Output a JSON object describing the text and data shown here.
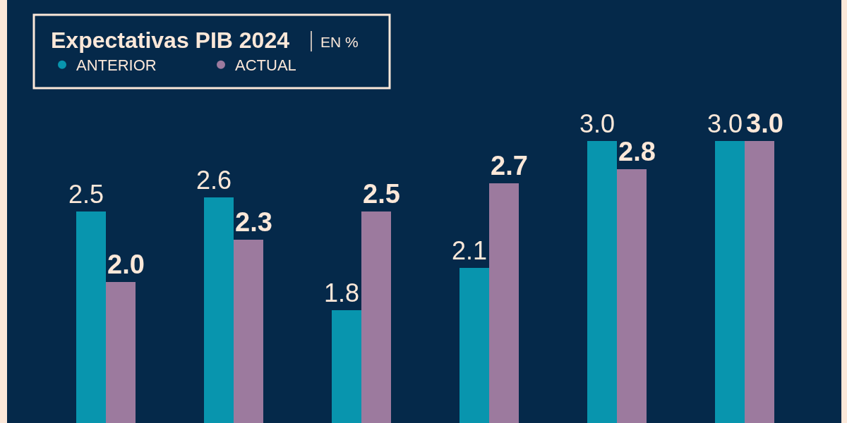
{
  "chart_data": {
    "type": "bar",
    "title": "Expectativas PIB 2024",
    "subtitle": "EN %",
    "categories": [
      null,
      null,
      null,
      null,
      null,
      null
    ],
    "series": [
      {
        "name": "ANTERIOR",
        "color": "#0895ae",
        "values": [
          2.5,
          2.6,
          1.8,
          2.1,
          3.0,
          3.0
        ],
        "value_labels": [
          "2.5",
          "2.6",
          "1.8",
          "2.1",
          "3.0",
          "3.0"
        ]
      },
      {
        "name": "ACTUAL",
        "color": "#9c7a9e",
        "values": [
          2.0,
          2.3,
          2.5,
          2.7,
          2.8,
          3.0
        ],
        "value_labels": [
          "2.0",
          "2.3",
          "2.5",
          "2.7",
          "2.8",
          "3.0"
        ]
      }
    ],
    "ylim": [
      1,
      4
    ],
    "legend": "top left"
  }
}
